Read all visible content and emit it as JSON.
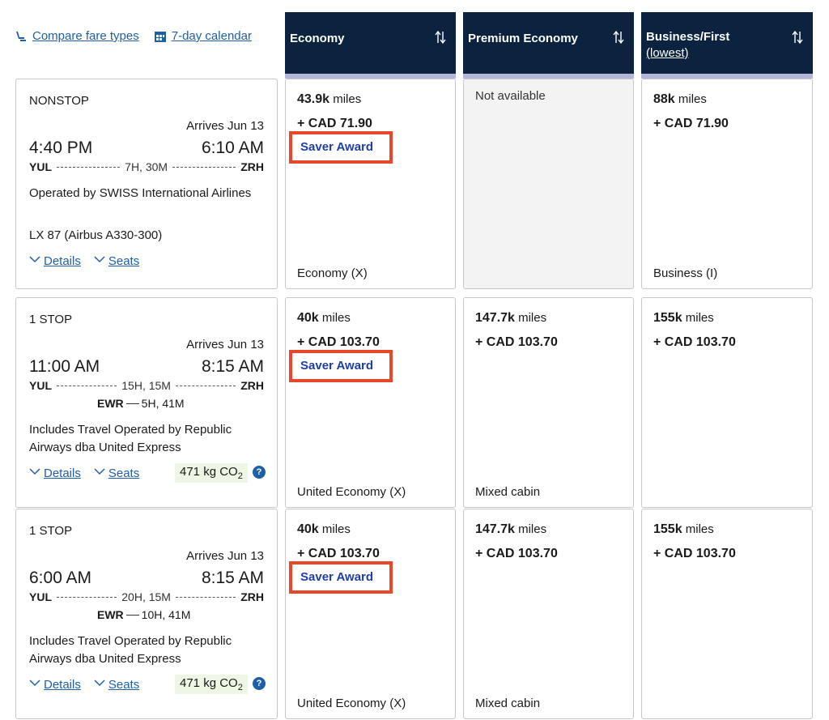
{
  "top_links": {
    "compare": "Compare fare types",
    "calendar": "7-day calendar"
  },
  "columns": [
    {
      "title": "Economy"
    },
    {
      "title": "Premium Economy"
    },
    {
      "title": "Business/First",
      "subtitle": "(lowest)"
    }
  ],
  "flights": [
    {
      "stops": "NONSTOP",
      "arrives": "Arrives Jun 13",
      "depart_time": "4:40 PM",
      "arrive_time": "6:10 AM",
      "origin": "YUL",
      "destination": "ZRH",
      "duration": "7H, 30M",
      "operated_by": "Operated by SWISS International Airlines",
      "flight_info": "LX 87 (Airbus A330-300)",
      "details": "Details",
      "seats": "Seats",
      "economy": {
        "miles": "43.9k",
        "miles_unit": "miles",
        "cash": "+ CAD 71.90",
        "saver": "Saver Award",
        "cabin": "Economy (X)"
      },
      "premium": {
        "not_available": "Not available"
      },
      "business": {
        "miles": "88k",
        "miles_unit": "miles",
        "cash": "+ CAD 71.90",
        "cabin": "Business (I)"
      }
    },
    {
      "stops": "1 STOP",
      "arrives": "Arrives Jun 13",
      "depart_time": "11:00 AM",
      "arrive_time": "8:15 AM",
      "origin": "YUL",
      "destination": "ZRH",
      "duration": "15H, 15M",
      "connection_airport": "EWR",
      "connection_time": "5H, 41M",
      "operated_by": "Includes Travel Operated by Republic Airways dba United Express",
      "details": "Details",
      "seats": "Seats",
      "co2_value": "471 kg CO",
      "co2_sub": "2",
      "info_icon": "?",
      "economy": {
        "miles": "40k",
        "miles_unit": "miles",
        "cash": "+ CAD 103.70",
        "saver": "Saver Award",
        "cabin": "United Economy (X)"
      },
      "premium": {
        "miles": "147.7k",
        "miles_unit": "miles",
        "cash": "+ CAD 103.70",
        "cabin": "Mixed cabin"
      },
      "business": {
        "miles": "155k",
        "miles_unit": "miles",
        "cash": "+ CAD 103.70"
      }
    },
    {
      "stops": "1 STOP",
      "arrives": "Arrives Jun 13",
      "depart_time": "6:00 AM",
      "arrive_time": "8:15 AM",
      "origin": "YUL",
      "destination": "ZRH",
      "duration": "20H, 15M",
      "connection_airport": "EWR",
      "connection_time": "10H, 41M",
      "operated_by": "Includes Travel Operated by Republic Airways dba United Express",
      "details": "Details",
      "seats": "Seats",
      "co2_value": "471 kg CO",
      "co2_sub": "2",
      "info_icon": "?",
      "economy": {
        "miles": "40k",
        "miles_unit": "miles",
        "cash": "+ CAD 103.70",
        "saver": "Saver Award",
        "cabin": "United Economy (X)"
      },
      "premium": {
        "miles": "147.7k",
        "miles_unit": "miles",
        "cash": "+ CAD 103.70",
        "cabin": "Mixed cabin"
      },
      "business": {
        "miles": "155k",
        "miles_unit": "miles",
        "cash": "+ CAD 103.70"
      }
    }
  ],
  "colors": {
    "header_bg": "#0c2340",
    "link": "#1f5fa8",
    "saver_text": "#1f3fa8",
    "highlight_box": "#e8472a",
    "co2_bg": "#eef7e6"
  }
}
